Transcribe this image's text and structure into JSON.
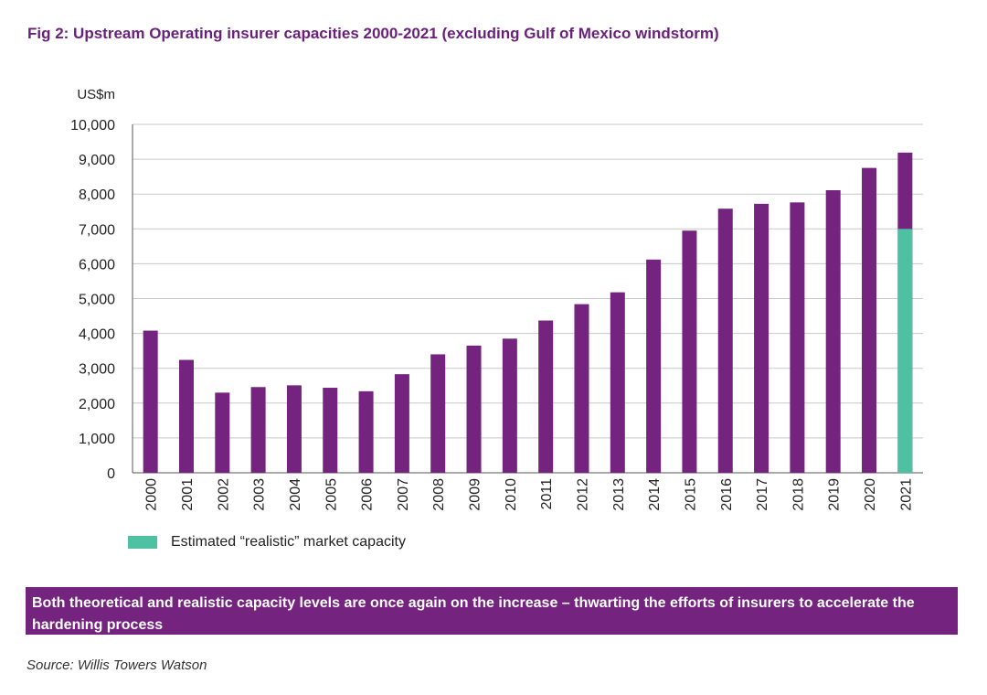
{
  "title": "Fig 2: Upstream Operating insurer capacities 2000-2021 (excluding Gulf of Mexico windstorm)",
  "colors": {
    "title": "#6b1f7c",
    "bar": "#74237f",
    "realistic": "#4fc1a3",
    "callout_bg": "#74237f",
    "grid": "#c8c8c8"
  },
  "legend": {
    "label": "Estimated “realistic” market capacity"
  },
  "callout": {
    "text": "Both theoretical and realistic capacity levels are once again on the increase – thwarting the efforts of insurers to accelerate the hardening process"
  },
  "source": "Source: Willis Towers Watson",
  "chart_data": {
    "type": "bar",
    "ylabel": "US$m",
    "xlabel": "",
    "ylim": [
      0,
      10000
    ],
    "yticks": [
      0,
      1000,
      2000,
      3000,
      4000,
      5000,
      6000,
      7000,
      8000,
      9000,
      10000
    ],
    "ytick_labels": [
      "0",
      "1,000",
      "2,000",
      "3,000",
      "4,000",
      "5,000",
      "6,000",
      "7,000",
      "8,000",
      "9,000",
      "10,000"
    ],
    "grid": true,
    "legend_position": "bottom-left",
    "categories": [
      "2000",
      "2001",
      "2002",
      "2003",
      "2004",
      "2005",
      "2006",
      "2007",
      "2008",
      "2009",
      "2010",
      "2011",
      "2012",
      "2013",
      "2014",
      "2015",
      "2016",
      "2017",
      "2018",
      "2019",
      "2020",
      "2021"
    ],
    "values": [
      4080,
      3240,
      2300,
      2460,
      2510,
      2440,
      2340,
      2830,
      3400,
      3650,
      3850,
      4370,
      4840,
      5180,
      6120,
      6950,
      7580,
      7720,
      7760,
      8110,
      8750,
      9190
    ],
    "realistic": {
      "category": "2021",
      "value": 7000
    }
  }
}
